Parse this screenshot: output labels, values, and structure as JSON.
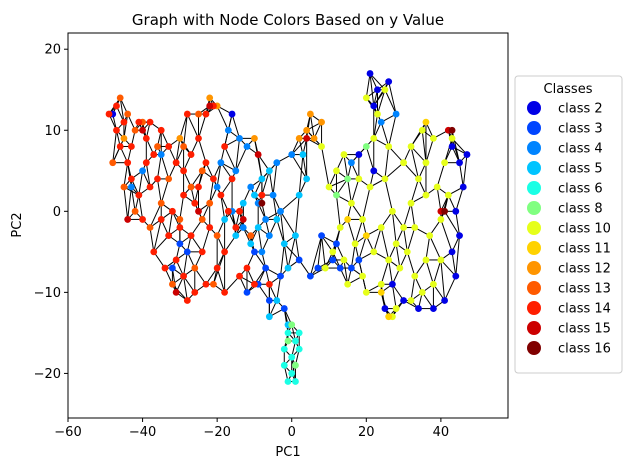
{
  "chart_data": {
    "type": "scatter",
    "title": "Graph with Node Colors Based on y Value",
    "xlabel": "PC1",
    "ylabel": "PC2",
    "xlim": [
      -60,
      58
    ],
    "ylim": [
      -25.5,
      22
    ],
    "xticks": [
      -60,
      -40,
      -20,
      0,
      20,
      40
    ],
    "yticks": [
      -20,
      -10,
      0,
      10,
      20
    ],
    "grid": false,
    "legend_title": "Classes",
    "legend_position": "right",
    "series": [
      {
        "name": "class 2",
        "color": "#0000e6",
        "points": [
          [
            21,
            17
          ],
          [
            23,
            15
          ],
          [
            22,
            13
          ],
          [
            26,
            16
          ],
          [
            43,
            8
          ],
          [
            45,
            6
          ],
          [
            47,
            7
          ],
          [
            46,
            3
          ],
          [
            44,
            0
          ],
          [
            45,
            -3
          ],
          [
            43,
            -5
          ],
          [
            44,
            -8
          ],
          [
            41,
            -11
          ],
          [
            38,
            -12
          ],
          [
            34,
            -12
          ],
          [
            30,
            -11
          ],
          [
            27,
            -9
          ],
          [
            25,
            -12
          ],
          [
            22,
            5
          ],
          [
            18,
            7
          ],
          [
            -16,
            12
          ],
          [
            -48,
            12
          ]
        ]
      },
      {
        "name": "class 3",
        "color": "#0045ff",
        "points": [
          [
            -10,
            -5
          ],
          [
            -7,
            -7
          ],
          [
            -9,
            -9
          ],
          [
            -12,
            -10
          ],
          [
            -3,
            -8
          ],
          [
            2,
            -6
          ],
          [
            5,
            -8
          ],
          [
            7,
            -7
          ],
          [
            11,
            -6
          ],
          [
            13,
            -7
          ],
          [
            16,
            -7
          ],
          [
            18,
            -6
          ],
          [
            12,
            -4
          ],
          [
            8,
            -3
          ],
          [
            -30,
            -4
          ],
          [
            -32,
            -7
          ],
          [
            -28,
            -5
          ],
          [
            -6,
            -11
          ],
          [
            -2,
            -12
          ]
        ]
      },
      {
        "name": "class 4",
        "color": "#0084ff",
        "points": [
          [
            -12,
            8
          ],
          [
            -14,
            9
          ],
          [
            -17,
            10
          ],
          [
            -19,
            6
          ],
          [
            -15,
            5
          ],
          [
            -11,
            3
          ],
          [
            -9,
            1
          ],
          [
            -7,
            -1
          ],
          [
            -5,
            2
          ],
          [
            -3,
            0
          ],
          [
            -6,
            -3
          ],
          [
            -8,
            -5
          ],
          [
            -4,
            6
          ],
          [
            0,
            7
          ],
          [
            -13,
            -2
          ],
          [
            -16,
            0
          ],
          [
            -20,
            3
          ],
          [
            -35,
            7
          ],
          [
            -40,
            5
          ],
          [
            -43,
            3
          ],
          [
            28,
            12
          ],
          [
            24,
            11
          ],
          [
            16,
            6
          ]
        ]
      },
      {
        "name": "class 5",
        "color": "#00c4ff",
        "points": [
          [
            -10,
            2
          ],
          [
            -8,
            4
          ],
          [
            -6,
            5
          ],
          [
            -4,
            -1
          ],
          [
            -2,
            -4
          ],
          [
            -1,
            -7
          ],
          [
            1,
            -3
          ],
          [
            2,
            2
          ],
          [
            4,
            4
          ],
          [
            3,
            7
          ],
          [
            -9,
            -2
          ],
          [
            -11,
            -4
          ],
          [
            -13,
            1
          ],
          [
            -15,
            -3
          ],
          [
            -18,
            -1
          ],
          [
            -4,
            -11
          ],
          [
            -6,
            -13
          ],
          [
            -1,
            -14
          ]
        ]
      },
      {
        "name": "class 6",
        "color": "#1affe5",
        "points": [
          [
            -1,
            -15
          ],
          [
            1,
            -16
          ],
          [
            0,
            -18
          ],
          [
            2,
            -17
          ],
          [
            -2,
            -19
          ],
          [
            0,
            -20
          ],
          [
            1,
            -21
          ],
          [
            -1,
            -21
          ],
          [
            -2,
            -17
          ],
          [
            2,
            -15
          ]
        ]
      },
      {
        "name": "class 8",
        "color": "#80ff80",
        "points": [
          [
            0,
            -14
          ],
          [
            1,
            -19
          ],
          [
            -1,
            -16
          ],
          [
            12,
            2
          ],
          [
            15,
            4
          ],
          [
            20,
            8
          ]
        ]
      },
      {
        "name": "class 10",
        "color": "#e6ff1a",
        "points": [
          [
            20,
            14
          ],
          [
            23,
            12
          ],
          [
            25,
            15
          ],
          [
            12,
            5
          ],
          [
            14,
            7
          ],
          [
            8,
            8
          ],
          [
            10,
            3
          ],
          [
            16,
            1
          ],
          [
            19,
            -1
          ],
          [
            17,
            -4
          ],
          [
            13,
            -2
          ],
          [
            11,
            -5
          ],
          [
            9,
            -7
          ],
          [
            15,
            -9
          ],
          [
            19,
            -8
          ],
          [
            22,
            -5
          ],
          [
            24,
            -2
          ],
          [
            21,
            3
          ],
          [
            25,
            4
          ],
          [
            27,
            0
          ],
          [
            26,
            -6
          ],
          [
            29,
            -7
          ],
          [
            31,
            -5
          ],
          [
            33,
            -8
          ],
          [
            36,
            -6
          ],
          [
            38,
            -9
          ],
          [
            35,
            -10
          ],
          [
            32,
            -11
          ],
          [
            28,
            -12
          ],
          [
            30,
            -2
          ],
          [
            32,
            1
          ],
          [
            34,
            4
          ],
          [
            36,
            6
          ],
          [
            38,
            9
          ],
          [
            35,
            10
          ],
          [
            32,
            8
          ],
          [
            30,
            6
          ],
          [
            33,
            -2
          ],
          [
            37,
            -3
          ],
          [
            40,
            -1
          ],
          [
            39,
            3
          ],
          [
            41,
            6
          ],
          [
            43,
            9
          ],
          [
            28,
            -4
          ],
          [
            26,
            8
          ],
          [
            22,
            9
          ],
          [
            18,
            4
          ],
          [
            14,
            -6
          ],
          [
            20,
            -10
          ],
          [
            24,
            -9
          ],
          [
            27,
            -13
          ],
          [
            40,
            -6
          ],
          [
            42,
            2
          ],
          [
            36,
            2
          ]
        ]
      },
      {
        "name": "class 11",
        "color": "#ffd200",
        "points": [
          [
            20,
            -3
          ],
          [
            24,
            -10
          ],
          [
            26,
            -13
          ],
          [
            36,
            11
          ],
          [
            15,
            -1
          ]
        ]
      },
      {
        "name": "class 12",
        "color": "#ff9500",
        "points": [
          [
            2,
            9
          ],
          [
            4,
            10
          ],
          [
            6,
            9
          ],
          [
            8,
            11
          ],
          [
            -22,
            14
          ],
          [
            -20,
            13
          ],
          [
            -45,
            9
          ],
          [
            -30,
            9
          ],
          [
            -10,
            9
          ],
          [
            5,
            12
          ]
        ]
      },
      {
        "name": "class 13",
        "color": "#ff5a00",
        "points": [
          [
            -46,
            14
          ],
          [
            -44,
            12
          ],
          [
            -42,
            10
          ],
          [
            -48,
            6
          ],
          [
            -45,
            3
          ],
          [
            -42,
            0
          ],
          [
            -38,
            -2
          ],
          [
            -35,
            1
          ],
          [
            -33,
            4
          ],
          [
            -36,
            8
          ],
          [
            -40,
            11
          ],
          [
            -25,
            12
          ],
          [
            -27,
            3
          ],
          [
            -24,
            -1
          ],
          [
            -22,
            1
          ],
          [
            -20,
            -3
          ],
          [
            -30,
            -1
          ],
          [
            -32,
            -9
          ],
          [
            -26,
            -7
          ],
          [
            -21,
            -9
          ],
          [
            -24,
            5
          ],
          [
            -29,
            8
          ],
          [
            -11,
            -3
          ]
        ]
      },
      {
        "name": "class 14",
        "color": "#ff1e00",
        "points": [
          [
            -49,
            12
          ],
          [
            -47,
            10
          ],
          [
            -46,
            8
          ],
          [
            -44,
            6
          ],
          [
            -43,
            4
          ],
          [
            -41,
            2
          ],
          [
            -40,
            -1
          ],
          [
            -38,
            3
          ],
          [
            -37,
            7
          ],
          [
            -39,
            9
          ],
          [
            -41,
            11
          ],
          [
            -38,
            11
          ],
          [
            -35,
            10
          ],
          [
            -33,
            8
          ],
          [
            -31,
            6
          ],
          [
            -29,
            5
          ],
          [
            -27,
            7
          ],
          [
            -25,
            9
          ],
          [
            -23,
            6
          ],
          [
            -21,
            4
          ],
          [
            -19,
            2
          ],
          [
            -17,
            0
          ],
          [
            -15,
            -2
          ],
          [
            -18,
            -5
          ],
          [
            -20,
            -7
          ],
          [
            -23,
            -9
          ],
          [
            -26,
            -10
          ],
          [
            -29,
            -8
          ],
          [
            -31,
            -6
          ],
          [
            -33,
            -3
          ],
          [
            -35,
            -1
          ],
          [
            -37,
            -5
          ],
          [
            -34,
            -7
          ],
          [
            -30,
            -2
          ],
          [
            -27,
            -3
          ],
          [
            -24,
            -5
          ],
          [
            -22,
            -2
          ],
          [
            -26,
            1
          ],
          [
            -29,
            2
          ],
          [
            -32,
            0
          ],
          [
            -36,
            4
          ],
          [
            -39,
            6
          ],
          [
            -43,
            8
          ],
          [
            -45,
            11
          ],
          [
            -47,
            13
          ],
          [
            -28,
            12
          ],
          [
            -23,
            12
          ],
          [
            -21,
            13
          ],
          [
            -18,
            8
          ],
          [
            -16,
            4
          ],
          [
            -14,
            0
          ],
          [
            -12,
            -7
          ],
          [
            -10,
            -9
          ],
          [
            -14,
            -8
          ],
          [
            -28,
            -11
          ],
          [
            -18,
            -10
          ],
          [
            -8,
            2
          ],
          [
            -6,
            -9
          ],
          [
            -25,
            3
          ]
        ]
      },
      {
        "name": "class 15",
        "color": "#cc0000",
        "points": [
          [
            -22,
            13
          ],
          [
            -25,
            0
          ],
          [
            -40,
            10
          ],
          [
            -13,
            -1
          ],
          [
            -9,
            7
          ],
          [
            42,
            10
          ],
          [
            40,
            0
          ],
          [
            4,
            9
          ],
          [
            -31,
            -10
          ],
          [
            -44,
            -1
          ]
        ]
      },
      {
        "name": "class 16",
        "color": "#800000",
        "points": [
          [
            43,
            10
          ],
          [
            41,
            0
          ],
          [
            -8,
            1
          ]
        ]
      }
    ]
  }
}
